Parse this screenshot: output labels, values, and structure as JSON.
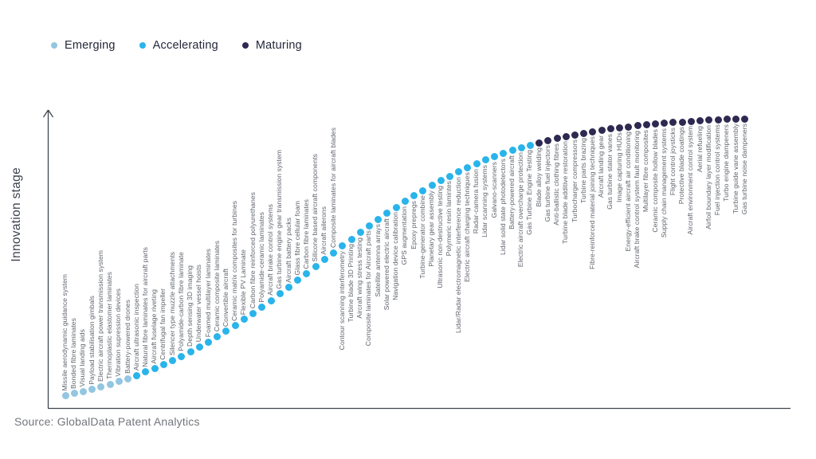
{
  "legend_title": "",
  "y_axis_label": "Innovation stage",
  "source": "Source: GlobalData Patent Analytics",
  "chart_data": {
    "type": "scatter",
    "title": "",
    "xlabel": "",
    "ylabel": "Innovation stage",
    "legend_position": "top-left",
    "grid": false,
    "description": "S-curve of aerospace technologies by innovation stage; each dot is one technology, ordered left-to-right by maturity",
    "series": [
      {
        "name": "Emerging",
        "color": "#93c6e1",
        "items": [
          "Missile aerodynamic guidance system",
          "Bonded fibre laminates",
          "Visual landing aids",
          "Payload stabilisation gimbals",
          "Electric aircraft power transmission system",
          "Thermoplastic elastomer laminates",
          "Vibration supression devices",
          "Battery-powered drones"
        ]
      },
      {
        "name": "Accelerating",
        "color": "#29b4ea",
        "items": [
          "Aircraft ultrasonic inspection",
          "Natural fibre laminates for aircraft parts",
          "Aircraft fuselage riveting",
          "Centrifugal fan impeller",
          "Silencer type muzzle attachments",
          "Polyamide-carbon fibre laminate",
          "Depth sensing 3D imaging",
          "Underwater vessel hoists",
          "Foamed multilayer laminates",
          "Ceramic composite laminates",
          "Convertible aircraft",
          "Ceramic matrix composites for turbines",
          "Flexible PV Laminate",
          "Carbon fibre reinforced polyurethanes",
          "Polyamide-ceramic laminates",
          "Aircraft brake control systems",
          "Gas turbine engine gear transmission system",
          "Aircraft battery packs",
          "Glass fibre cellular foam",
          "Carbon fibre laminates",
          "Silicone based aircraft components",
          "Aircraft ailerons",
          "Composite laminates for aircraft blades",
          "Contour scanning interferometry",
          "Turbine blade 3D Printing",
          "Aircraft wing stress testing",
          "Composite laminates for Aircraft parts",
          "Satellite antenna arrays",
          "Solar powered electric aircraft",
          "Navigation device calibration",
          "GPS augmentation",
          "Epoxy prepregs",
          "Turbine-generator combine",
          "Planetary gear assembly",
          "Ultrasonic non-destructive testing",
          "Polymeric resin lamintes",
          "Lidar/Radar electromagnetic interference reduction",
          "Electric aircraft charging techniques",
          "Radar-camera fusion",
          "Lidar scanning systems",
          "Galvano-scanners",
          "Lidar solid state photodetectors",
          "Battery-powered aircraft",
          "Electric aircraft overcharge protection",
          "Gas Turbine Engine Testing"
        ]
      },
      {
        "name": "Maturing",
        "color": "#2e2951",
        "items": [
          "Blade alloy welding",
          "Gas turbine fuel injectors",
          "Anti-ballistic clothing fibres",
          "Turbine blade additive restoration",
          "Turbocharger compressors",
          "Turbine parts brazing",
          "Fibre-reinforced material joining techniques",
          "Aircraft landing gear",
          "Gas turbine stator vanes",
          "Image capturing HUDs",
          "Energy-efficient aircraft air conditioning",
          "Aircraft brake control system fault monitoring",
          "Multilayer fibre composites",
          "Ceramic composite hollow blades",
          "Supply chain management systems",
          "Flight control joysticks",
          "Protective blade coatings",
          "Aircraft environment control system",
          "Aerial refueling",
          "Airfoil boundary layer modification",
          "Fuel injection control systems",
          "Turbo engine dampeners",
          "Turbine guide vane assembly",
          "Gas turbine noise dampeners"
        ]
      }
    ]
  }
}
